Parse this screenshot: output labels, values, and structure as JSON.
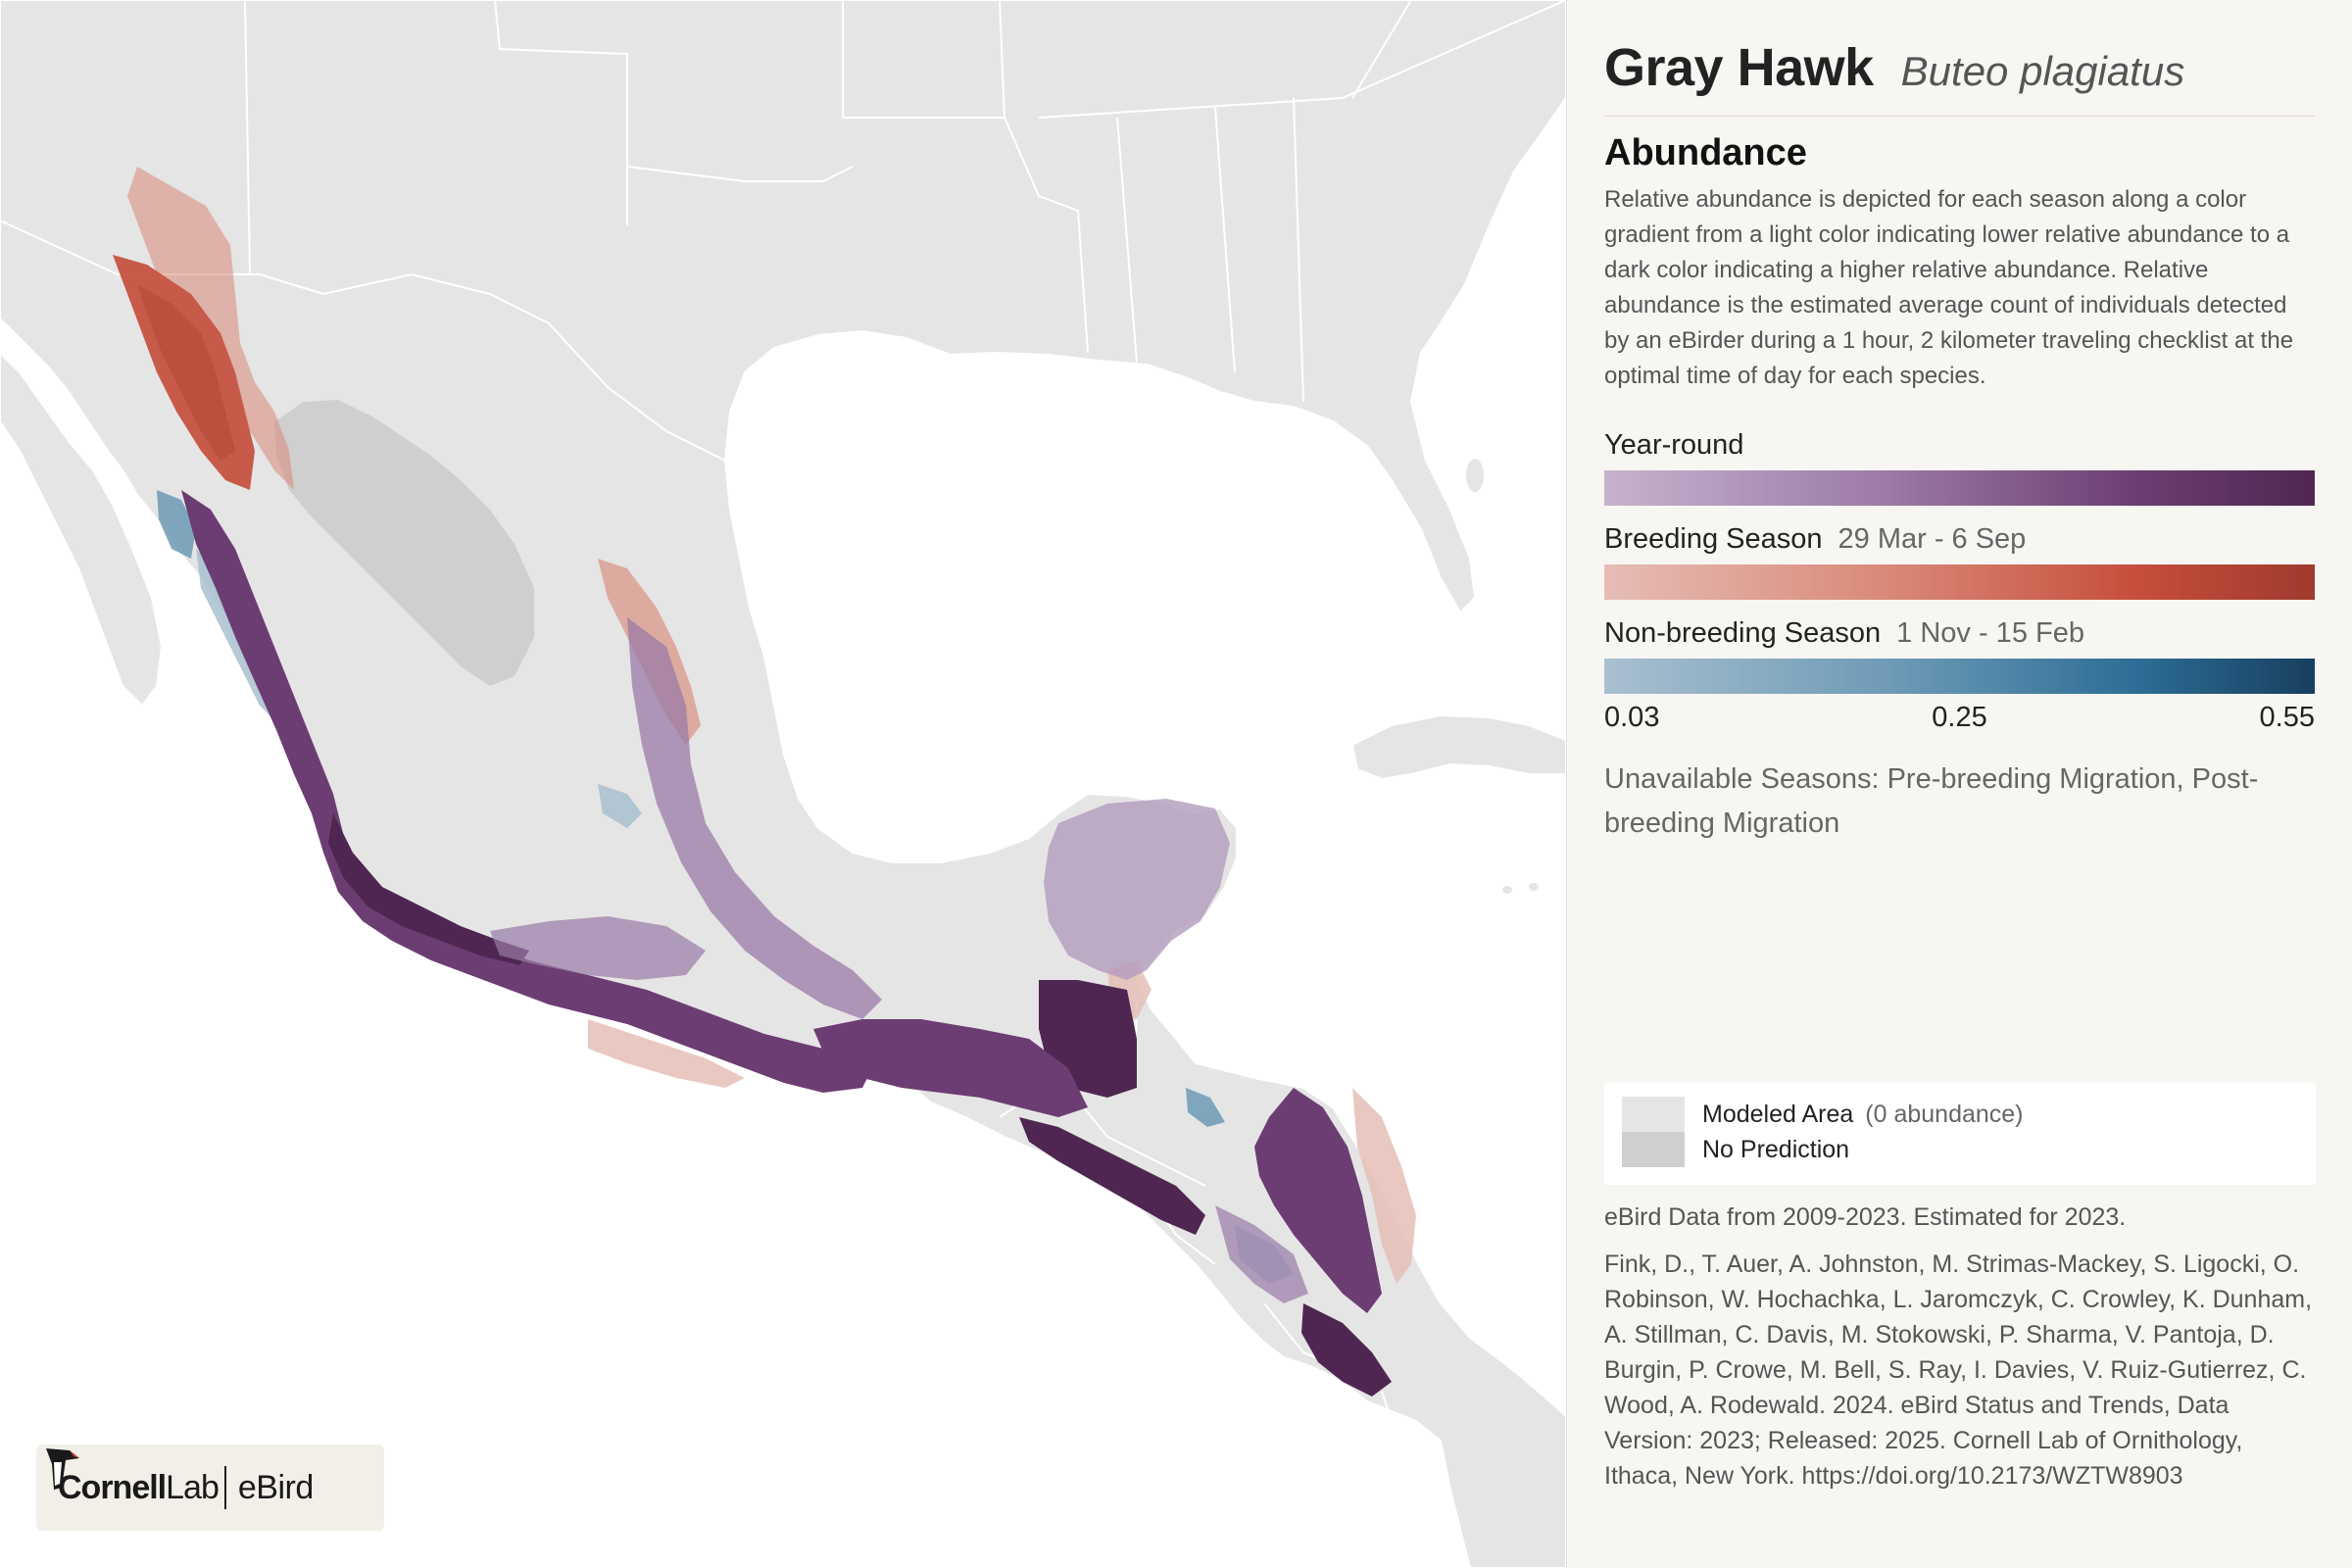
{
  "species": {
    "common_name": "Gray Hawk",
    "scientific_name": "Buteo plagiatus"
  },
  "abundance": {
    "title": "Abundance",
    "description": "Relative abundance is depicted for each season along a color gradient from a light color indicating lower relative abundance to a dark color indicating a higher relative abundance. Relative abundance is the estimated average count of individuals detected by an eBirder during a 1 hour, 2 kilometer traveling checklist at the optimal time of day for each species."
  },
  "seasons": {
    "year_round": {
      "label": "Year-round",
      "colors": [
        "#c6b3cc",
        "#4f2651"
      ]
    },
    "breeding": {
      "label": "Breeding Season",
      "dates": "29 Mar - 6 Sep",
      "colors": [
        "#e6bdb6",
        "#a03a2d"
      ]
    },
    "nonbreeding": {
      "label": "Non-breeding Season",
      "dates": "1 Nov - 15 Feb",
      "colors": [
        "#a9c0cf",
        "#173f5f"
      ]
    }
  },
  "scale": {
    "min": "0.03",
    "mid": "0.25",
    "max": "0.55"
  },
  "unavailable": "Unavailable Seasons: Pre-breeding Migration, Post-breeding Migration",
  "legend": {
    "modeled_label": "Modeled Area",
    "modeled_note": "(0 abundance)",
    "no_prediction_label": "No Prediction",
    "colors": {
      "modeled": "#e5e5e5",
      "no_prediction": "#cfcfcf"
    }
  },
  "data_years": "eBird Data from 2009-2023. Estimated for 2023.",
  "citation": "Fink, D., T. Auer, A. Johnston, M. Strimas-Mackey, S. Ligocki, O. Robinson, W. Hochachka, L. Jaromczyk, C. Crowley, K. Dunham, A. Stillman, C. Davis, M. Stokowski, P. Sharma, V. Pantoja, D. Burgin, P. Crowe, M. Bell, S. Ray, I. Davies, V. Ruiz-Gutierrez, C. Wood, A. Rodewald. 2024. eBird Status and Trends, Data Version: 2023; Released: 2025. Cornell Lab of Ornithology, Ithaca, New York. https://doi.org/10.2173/WZTW8903",
  "logo": {
    "cornell": "Cornell",
    "lab": "Lab",
    "ebird": "eBird"
  }
}
